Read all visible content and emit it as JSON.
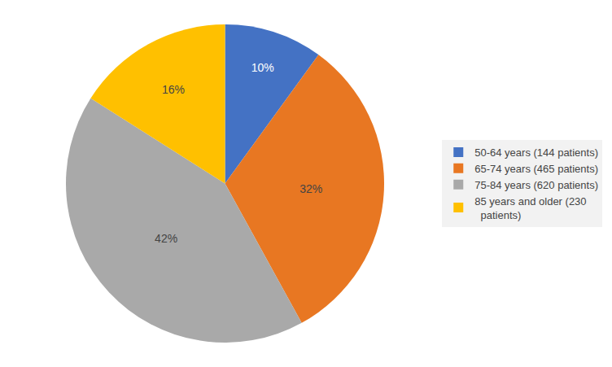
{
  "chart_data": {
    "type": "pie",
    "categories": [
      "50-64 years (144 patients)",
      "65-74 years (465 patients)",
      "75-84 years (620 patients)",
      "85 years and older (230\n  patients)"
    ],
    "values": [
      10,
      32,
      42,
      16
    ],
    "value_labels": [
      "10%",
      "32%",
      "42%",
      "16%"
    ],
    "colors": [
      "#4472C4",
      "#E87722",
      "#A9A9A9",
      "#FFC000"
    ],
    "data_labels": true,
    "legend": "right"
  }
}
